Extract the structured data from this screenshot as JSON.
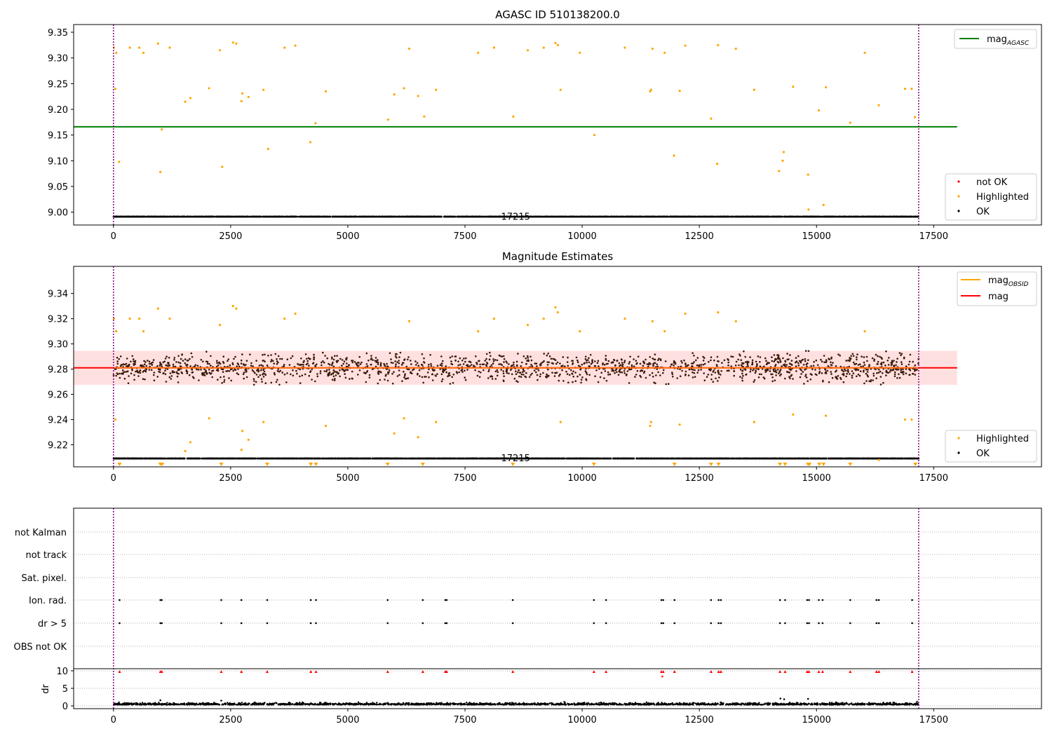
{
  "chart_data": [
    {
      "type": "scatter",
      "title": "AGASC ID 510138200.0",
      "xlim": [
        -850,
        19800
      ],
      "ylim": [
        8.975,
        9.365
      ],
      "xticks": [
        0,
        2500,
        5000,
        7500,
        10000,
        12500,
        15000,
        17500
      ],
      "yticks": [
        9.0,
        9.05,
        9.1,
        9.15,
        9.2,
        9.25,
        9.3,
        9.35
      ],
      "obs_boundaries": [
        0,
        17180
      ],
      "obs_labels": [
        {
          "text": "17215",
          "x": 8580,
          "y": 8.985
        }
      ],
      "mag_agasc": {
        "value": 9.166,
        "x_range": [
          -850,
          18000
        ]
      },
      "ok_band": {
        "center": 9.281,
        "spread": 0.012,
        "x_range": [
          0,
          17180
        ]
      },
      "highlighted": [
        [
          10,
          9.32
        ],
        [
          40,
          9.24
        ],
        [
          60,
          9.31
        ],
        [
          120,
          9.098
        ],
        [
          350,
          9.32
        ],
        [
          550,
          9.32
        ],
        [
          640,
          9.31
        ],
        [
          950,
          9.328
        ],
        [
          1000,
          9.078
        ],
        [
          1030,
          9.161
        ],
        [
          1200,
          9.32
        ],
        [
          1530,
          9.215
        ],
        [
          1640,
          9.222
        ],
        [
          2040,
          9.241
        ],
        [
          2270,
          9.315
        ],
        [
          2320,
          9.088
        ],
        [
          2550,
          9.33
        ],
        [
          2620,
          9.328
        ],
        [
          2730,
          9.216
        ],
        [
          2750,
          9.231
        ],
        [
          2880,
          9.224
        ],
        [
          3200,
          9.238
        ],
        [
          3300,
          9.123
        ],
        [
          3650,
          9.32
        ],
        [
          3880,
          9.324
        ],
        [
          4200,
          9.136
        ],
        [
          4310,
          9.173
        ],
        [
          4530,
          9.235
        ],
        [
          5860,
          9.18
        ],
        [
          5990,
          9.229
        ],
        [
          6200,
          9.241
        ],
        [
          6310,
          9.318
        ],
        [
          6500,
          9.226
        ],
        [
          6630,
          9.186
        ],
        [
          6880,
          9.238
        ],
        [
          7780,
          9.31
        ],
        [
          8120,
          9.32
        ],
        [
          8530,
          9.186
        ],
        [
          8840,
          9.315
        ],
        [
          9180,
          9.32
        ],
        [
          9430,
          9.329
        ],
        [
          9480,
          9.325
        ],
        [
          9540,
          9.238
        ],
        [
          9950,
          9.31
        ],
        [
          10260,
          9.15
        ],
        [
          10910,
          9.32
        ],
        [
          11450,
          9.235
        ],
        [
          11470,
          9.238
        ],
        [
          11500,
          9.318
        ],
        [
          11760,
          9.31
        ],
        [
          11960,
          9.11
        ],
        [
          12080,
          9.236
        ],
        [
          12200,
          9.324
        ],
        [
          12750,
          9.182
        ],
        [
          12880,
          9.094
        ],
        [
          12900,
          9.325
        ],
        [
          13280,
          9.318
        ],
        [
          13670,
          9.238
        ],
        [
          14200,
          9.08
        ],
        [
          14300,
          9.117
        ],
        [
          14280,
          9.1
        ],
        [
          14500,
          9.244
        ],
        [
          14820,
          9.073
        ],
        [
          14830,
          9.005
        ],
        [
          15050,
          9.198
        ],
        [
          15150,
          9.014
        ],
        [
          15200,
          9.243
        ],
        [
          15720,
          9.174
        ],
        [
          16030,
          9.31
        ],
        [
          16330,
          9.208
        ],
        [
          16890,
          9.24
        ],
        [
          17030,
          9.24
        ],
        [
          17100,
          9.185
        ]
      ],
      "legends": [
        {
          "position": "upper right",
          "entries": [
            {
              "label": "mag",
              "sub": "AGASC",
              "color": "#008000",
              "kind": "line"
            }
          ]
        },
        {
          "position": "lower right",
          "entries": [
            {
              "label": "not OK",
              "color": "#ff0000",
              "kind": "dot"
            },
            {
              "label": "Highlighted",
              "color": "#ffa500",
              "kind": "dot"
            },
            {
              "label": "OK",
              "color": "#000000",
              "kind": "dot"
            }
          ]
        }
      ]
    },
    {
      "type": "scatter",
      "title": "Magnitude Estimates",
      "xlim": [
        -850,
        19800
      ],
      "ylim": [
        9.2025,
        9.3615
      ],
      "xticks": [
        0,
        2500,
        5000,
        7500,
        10000,
        12500,
        15000,
        17500
      ],
      "yticks": [
        9.22,
        9.24,
        9.26,
        9.28,
        9.3,
        9.32,
        9.34
      ],
      "obs_boundaries": [
        0,
        17180
      ],
      "obs_labels": [
        {
          "text": "17215",
          "x": 8580,
          "y": 9.207
        }
      ],
      "mag": {
        "value": 9.281,
        "x_range": [
          -850,
          18000
        ]
      },
      "mag_band": [
        9.2675,
        9.2945
      ],
      "mag_obsid": {
        "value": 9.281,
        "x_range": [
          0,
          17180
        ]
      },
      "ok_band": {
        "center": 9.281,
        "spread": 0.012,
        "x_range": [
          0,
          17180
        ]
      },
      "lower_markers_x": [
        130,
        1000,
        1040,
        2300,
        3280,
        4210,
        4320,
        5850,
        6600,
        8520,
        10250,
        11970,
        12750,
        12910,
        14220,
        14330,
        14820,
        14850,
        15060,
        15150,
        15720,
        17110
      ],
      "legends": [
        {
          "position": "upper right",
          "entries": [
            {
              "label": "mag",
              "sub": "OBSID",
              "color": "#ffa500",
              "kind": "line"
            },
            {
              "label": "mag",
              "color": "#ff0000",
              "kind": "line"
            }
          ]
        },
        {
          "position": "lower right",
          "entries": [
            {
              "label": "Highlighted",
              "color": "#ffa500",
              "kind": "dot"
            },
            {
              "label": "OK",
              "color": "#000000",
              "kind": "dot"
            }
          ]
        }
      ]
    },
    {
      "type": "scatter",
      "xlim": [
        -850,
        19800
      ],
      "xticks": [
        0,
        2500,
        5000,
        7500,
        10000,
        12500,
        15000,
        17500
      ],
      "obs_boundaries": [
        0,
        17180
      ],
      "flag_rows": [
        "not Kalman",
        "not track",
        "Sat. pixel.",
        "Ion. rad.",
        "dr > 5",
        "OBS not OK"
      ],
      "flag_times": [
        130,
        1000,
        1030,
        2300,
        2730,
        3280,
        4210,
        4320,
        5850,
        6600,
        7080,
        7110,
        8520,
        10250,
        10510,
        11690,
        11730,
        11970,
        12750,
        12910,
        12960,
        14220,
        14330,
        14800,
        14840,
        15050,
        15130,
        15720,
        16280,
        16330,
        17040
      ],
      "dr": {
        "ylabel": "dr",
        "yticks": [
          0,
          5,
          10
        ],
        "ylim": [
          -0.8,
          10.6
        ],
        "flagged_value": 9.8,
        "baseline": {
          "center": 0.3,
          "spread": 0.35
        },
        "outliers": [
          [
            11710,
            8.4
          ],
          [
            14230,
            2.1
          ],
          [
            14310,
            1.9
          ],
          [
            14820,
            2.0
          ],
          [
            1000,
            1.6
          ],
          [
            2300,
            1.5
          ]
        ]
      }
    }
  ]
}
